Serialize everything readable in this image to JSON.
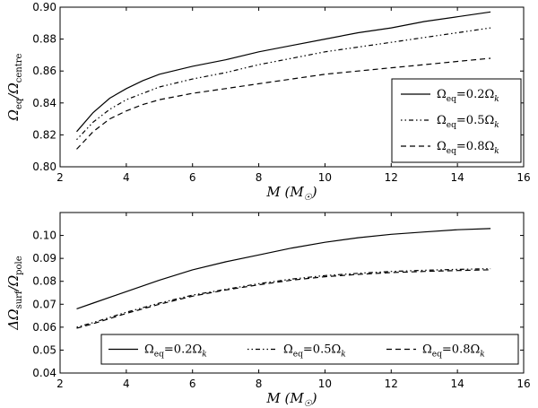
{
  "chart_data": [
    {
      "type": "line",
      "xlabel": "M (M☉)",
      "ylabel": "Ωeq/Ωcentre",
      "xlim": [
        2,
        16
      ],
      "ylim": [
        0.8,
        0.9
      ],
      "xticks": [
        "2",
        "4",
        "6",
        "8",
        "10",
        "12",
        "14",
        "16"
      ],
      "yticks": [
        "0.80",
        "0.82",
        "0.84",
        "0.86",
        "0.88",
        "0.90"
      ],
      "legend_position": "lower-right",
      "x": [
        2.5,
        3,
        3.5,
        4,
        4.5,
        5,
        6,
        7,
        8,
        9,
        10,
        11,
        12,
        13,
        14,
        15
      ],
      "series": [
        {
          "name": "Ωeq=0.2Ωk",
          "linestyle": "solid",
          "values": [
            0.822,
            0.834,
            0.843,
            0.849,
            0.854,
            0.858,
            0.863,
            0.867,
            0.872,
            0.876,
            0.88,
            0.884,
            0.887,
            0.891,
            0.894,
            0.897
          ]
        },
        {
          "name": "Ωeq=0.5Ωk",
          "linestyle": "dashdot",
          "values": [
            0.817,
            0.828,
            0.836,
            0.842,
            0.846,
            0.85,
            0.855,
            0.859,
            0.864,
            0.868,
            0.872,
            0.875,
            0.878,
            0.881,
            0.884,
            0.887
          ]
        },
        {
          "name": "Ωeq=0.8Ωk",
          "linestyle": "dashed",
          "values": [
            0.811,
            0.822,
            0.83,
            0.835,
            0.839,
            0.842,
            0.846,
            0.849,
            0.852,
            0.855,
            0.858,
            0.86,
            0.862,
            0.864,
            0.866,
            0.868
          ]
        }
      ]
    },
    {
      "type": "line",
      "xlabel": "M (M☉)",
      "ylabel": "ΔΩsurf/Ωpole",
      "xlim": [
        2,
        16
      ],
      "ylim": [
        0.04,
        0.11
      ],
      "xticks": [
        "2",
        "4",
        "6",
        "8",
        "10",
        "12",
        "14",
        "16"
      ],
      "yticks": [
        "0.04",
        "0.05",
        "0.06",
        "0.07",
        "0.08",
        "0.09",
        "0.10"
      ],
      "legend_position": "lower-center",
      "x": [
        2.5,
        3,
        4,
        5,
        6,
        7,
        8,
        9,
        10,
        11,
        12,
        13,
        14,
        15
      ],
      "series": [
        {
          "name": "Ωeq=0.2Ωk",
          "linestyle": "solid",
          "values": [
            0.068,
            0.0705,
            0.0755,
            0.0805,
            0.085,
            0.0885,
            0.0915,
            0.0945,
            0.097,
            0.099,
            0.1005,
            0.1015,
            0.1025,
            0.103
          ]
        },
        {
          "name": "Ωeq=0.5Ωk",
          "linestyle": "dashdot",
          "values": [
            0.06,
            0.062,
            0.0665,
            0.0705,
            0.074,
            0.0765,
            0.079,
            0.081,
            0.0825,
            0.0835,
            0.0843,
            0.0848,
            0.0852,
            0.0855
          ]
        },
        {
          "name": "Ωeq=0.8Ωk",
          "linestyle": "dashed",
          "values": [
            0.0595,
            0.0615,
            0.066,
            0.07,
            0.0735,
            0.0762,
            0.0785,
            0.0805,
            0.082,
            0.083,
            0.0838,
            0.0843,
            0.0847,
            0.085
          ]
        }
      ]
    }
  ]
}
